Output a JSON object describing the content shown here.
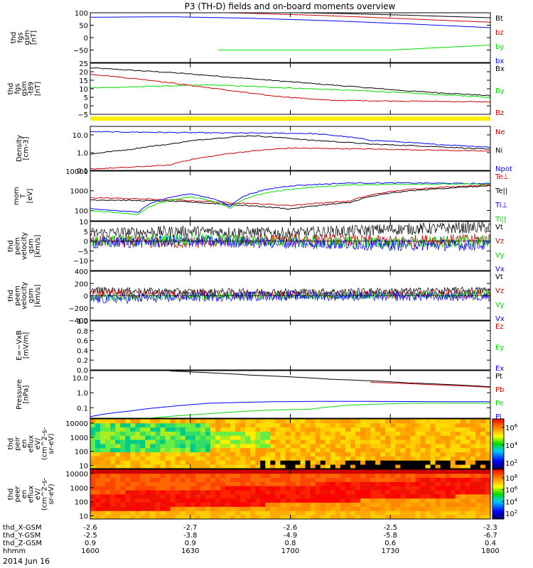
{
  "title": "P3 (TH-D) fields and on-board moments overview",
  "date": "2014 Jun 16",
  "colors": {
    "black": "#000000",
    "red": "#cc0000",
    "green": "#00dd00",
    "blue": "#0000ff",
    "yellow": "#ffee00"
  },
  "chart_data": {
    "type": "line",
    "x_time": {
      "range": [
        "16:00",
        "18:00"
      ],
      "tick_times": [
        "1600",
        "1630",
        "1700",
        "1730",
        "1800"
      ]
    },
    "ephemeris": {
      "rows": [
        {
          "label": "thd_X-GSM",
          "values": [
            "-2.6",
            "-2.7",
            "-2.6",
            "-2.5",
            "-2.3"
          ]
        },
        {
          "label": "thd_Y-GSM",
          "values": [
            "-2.5",
            "-3.8",
            "-4.9",
            "-5.8",
            "-6.7"
          ]
        },
        {
          "label": "thd_Z-GSM",
          "values": [
            "0.9",
            "0.9",
            "0.8",
            "0.6",
            "0.4"
          ]
        },
        {
          "label": "hhmm",
          "values": [
            "1600",
            "1630",
            "1700",
            "1730",
            "1800"
          ]
        }
      ]
    },
    "panels": [
      {
        "id": "fgs_gsm",
        "ylabel_lines": [
          "thd",
          "fgs",
          "gsm",
          "[nT]"
        ],
        "scale": "linear",
        "ylim": [
          -100,
          100
        ],
        "ticks": [
          "100",
          "50",
          "0",
          "−50",
          ""
        ],
        "legend": [
          {
            "label": "Bt",
            "color": "#000000"
          },
          {
            "label": "bz",
            "color": "#cc0000"
          },
          {
            "label": "by",
            "color": "#00dd00"
          },
          {
            "label": "bx",
            "color": "#0000ff"
          }
        ],
        "series": [
          {
            "name": "Bt",
            "color": "#000000",
            "x": [
              0,
              0.2,
              0.4,
              0.6,
              0.8,
              1
            ],
            "y": [
              108,
              106,
              103,
              98,
              90,
              80
            ]
          },
          {
            "name": "bz",
            "color": "#cc0000",
            "x": [
              0,
              0.2,
              0.4,
              0.6,
              0.8,
              1
            ],
            "y": [
              108,
              105,
              98,
              88,
              75,
              62
            ]
          },
          {
            "name": "bx",
            "color": "#0000ff",
            "x": [
              0,
              0.2,
              0.4,
              0.6,
              0.8,
              1
            ],
            "y": [
              82,
              84,
              78,
              68,
              55,
              40
            ]
          },
          {
            "name": "by",
            "color": "#00dd00",
            "x": [
              0.32,
              0.45,
              0.6,
              0.75,
              0.9,
              1
            ],
            "y": [
              -100,
              -85,
              -66,
              -50,
              -38,
              -30
            ]
          }
        ]
      },
      {
        "id": "fgs_gsm_model",
        "ylabel_lines": [
          "thd",
          "fgs",
          "gsm",
          "-t89",
          "[nT]"
        ],
        "scale": "linear",
        "ylim": [
          -8,
          25
        ],
        "ticks": [
          "25",
          "20",
          "15",
          "10",
          "5",
          "0",
          "−5"
        ],
        "legend": [
          {
            "label": "Bx",
            "color": "#000000"
          },
          {
            "label": "By",
            "color": "#00dd00"
          },
          {
            "label": "Bz",
            "color": "#cc0000"
          }
        ],
        "series": [
          {
            "name": "Bx",
            "color": "#000000",
            "x": [
              0,
              0.2,
              0.4,
              0.6,
              0.8,
              1
            ],
            "y": [
              22,
              19,
              15,
              11,
              7,
              4
            ]
          },
          {
            "name": "By",
            "color": "#00dd00",
            "x": [
              0,
              0.15,
              0.3,
              0.5,
              0.7,
              1
            ],
            "y": [
              9,
              10,
              11,
              9,
              7,
              3
            ]
          },
          {
            "name": "Bz",
            "color": "#cc0000",
            "x": [
              0,
              0.15,
              0.3,
              0.45,
              0.6,
              0.8,
              1
            ],
            "y": [
              18,
              14,
              9,
              4,
              1,
              0.5,
              0
            ]
          }
        ],
        "flag_bar": true
      },
      {
        "id": "density",
        "ylabel_lines": [
          "Density",
          "[cm-3]"
        ],
        "scale": "log",
        "ylim": [
          0.1,
          30
        ],
        "ticks": [
          "10.0",
          "1.0",
          "0.1"
        ],
        "tick_values": [
          10,
          1,
          0.1
        ],
        "legend": [
          {
            "label": "Ne",
            "color": "#cc0000"
          },
          {
            "label": "Ni",
            "color": "#000000"
          },
          {
            "label": "Npot",
            "color": "#0000ff"
          }
        ],
        "series": [
          {
            "name": "Npot",
            "color": "#0000ff",
            "x": [
              0,
              0.3,
              0.55,
              0.7,
              0.85,
              1
            ],
            "y": [
              15,
              13,
              12,
              5,
              3,
              2
            ]
          },
          {
            "name": "Ni",
            "color": "#000000",
            "x": [
              0,
              0.1,
              0.2,
              0.3,
              0.4,
              0.55,
              0.7,
              1
            ],
            "y": [
              0.8,
              1.5,
              3,
              6,
              9,
              5,
              3,
              1.5
            ]
          },
          {
            "name": "Ne",
            "color": "#cc0000",
            "x": [
              0,
              0.1,
              0.2,
              0.3,
              0.4,
              0.5,
              0.7,
              1
            ],
            "y": [
              0.12,
              0.15,
              0.2,
              0.6,
              1.2,
              1.8,
              1.6,
              1.2
            ]
          }
        ]
      },
      {
        "id": "temperature",
        "ylabel_lines": [
          "mom",
          "T",
          "[eV]"
        ],
        "scale": "log",
        "ylim": [
          30,
          10000
        ],
        "ticks": [
          "10000",
          "1000",
          "100"
        ],
        "tick_values": [
          10000,
          1000,
          100
        ],
        "legend": [
          {
            "label": "Te⊥",
            "color": "#cc0000"
          },
          {
            "label": "Te||",
            "color": "#000000"
          },
          {
            "label": "Ti⊥",
            "color": "#0000ff"
          },
          {
            "label": "Ti||",
            "color": "#00dd00"
          }
        ],
        "series": [
          {
            "name": "Te⊥",
            "color": "#cc0000",
            "x": [
              0,
              0.2,
              0.35,
              0.5,
              0.65,
              0.8,
              1
            ],
            "y": [
              450,
              350,
              250,
              180,
              300,
              1200,
              2000
            ]
          },
          {
            "name": "Te||",
            "color": "#000000",
            "x": [
              0,
              0.2,
              0.35,
              0.5,
              0.65,
              0.8,
              1
            ],
            "y": [
              350,
              300,
              200,
              120,
              250,
              1000,
              1800
            ]
          },
          {
            "name": "Ti⊥",
            "color": "#0000ff",
            "x": [
              0,
              0.12,
              0.25,
              0.35,
              0.5,
              0.65,
              0.8,
              1
            ],
            "y": [
              120,
              80,
              700,
              150,
              1800,
              2500,
              2500,
              2300
            ]
          },
          {
            "name": "Ti||",
            "color": "#00dd00",
            "x": [
              0,
              0.12,
              0.25,
              0.35,
              0.5,
              0.65,
              0.8,
              1
            ],
            "y": [
              100,
              60,
              500,
              120,
              1200,
              2000,
              2200,
              2200
            ]
          }
        ]
      },
      {
        "id": "peim_velocity",
        "ylabel_lines": [
          "thd",
          "peim",
          "velocity",
          "gsm",
          "[km/s]"
        ],
        "scale": "linear",
        "ylim": [
          -15,
          10
        ],
        "ticks": [
          "10",
          "5",
          "0",
          "−5",
          "−10",
          ""
        ],
        "legend": [
          {
            "label": "Vt",
            "color": "#000000"
          },
          {
            "label": "Vz",
            "color": "#cc0000"
          },
          {
            "label": "Vy",
            "color": "#00dd00"
          },
          {
            "label": "Vx",
            "color": "#0000ff"
          }
        ],
        "noisy": [
          {
            "name": "Vt",
            "color": "#000000",
            "base": [
              4,
              5,
              4,
              6,
              7
            ],
            "amp": 3
          },
          {
            "name": "Vz",
            "color": "#cc0000",
            "base": [
              0,
              -1,
              1,
              0,
              1
            ],
            "amp": 3
          },
          {
            "name": "Vy",
            "color": "#00dd00",
            "base": [
              0,
              1,
              0,
              -1,
              0
            ],
            "amp": 3
          },
          {
            "name": "Vx",
            "color": "#0000ff",
            "base": [
              -1,
              0,
              -1,
              -2,
              -2
            ],
            "amp": 3
          }
        ]
      },
      {
        "id": "peem_velocity",
        "ylabel_lines": [
          "thd",
          "peem",
          "velocity",
          "gsm",
          "[km/s]"
        ],
        "scale": "linear",
        "ylim": [
          -400,
          400
        ],
        "ticks": [
          "400",
          "200",
          "0",
          "−200",
          "−400"
        ],
        "legend": [
          {
            "label": "Vt",
            "color": "#000000"
          },
          {
            "label": "Vz",
            "color": "#cc0000"
          },
          {
            "label": "Vy",
            "color": "#00dd00"
          },
          {
            "label": "Vx",
            "color": "#0000ff"
          }
        ],
        "noisy": [
          {
            "name": "Vt",
            "color": "#000000",
            "base": [
              90,
              60,
              60,
              70,
              90
            ],
            "amp": 60
          },
          {
            "name": "Vz",
            "color": "#cc0000",
            "base": [
              40,
              20,
              10,
              20,
              30
            ],
            "amp": 70
          },
          {
            "name": "Vy",
            "color": "#00dd00",
            "base": [
              -30,
              -10,
              0,
              10,
              20
            ],
            "amp": 60
          },
          {
            "name": "Vx",
            "color": "#0000ff",
            "base": [
              -60,
              -20,
              0,
              -10,
              -10
            ],
            "amp": 80
          }
        ]
      },
      {
        "id": "efield",
        "ylabel_lines": [
          "E=−VxB",
          "[mV/m]"
        ],
        "scale": "linear",
        "ylim": [
          0,
          1
        ],
        "ticks": [
          "1.0",
          "0.8",
          "0.6",
          "0.4",
          "0.2",
          "0.0"
        ],
        "legend": [
          {
            "label": "Ez",
            "color": "#cc0000"
          },
          {
            "label": "Ey",
            "color": "#00dd00"
          },
          {
            "label": "Ex",
            "color": "#0000ff"
          }
        ],
        "series": []
      },
      {
        "id": "pressure",
        "ylabel_lines": [
          "Pressure",
          "[nPa]"
        ],
        "scale": "log",
        "ylim": [
          0.02,
          30
        ],
        "ticks": [
          "10.0",
          "1.0",
          "0.1"
        ],
        "tick_values": [
          10,
          1,
          0.1
        ],
        "legend": [
          {
            "label": "Pt",
            "color": "#000000"
          },
          {
            "label": "Pb",
            "color": "#cc0000"
          },
          {
            "label": "Pe",
            "color": "#00dd00"
          },
          {
            "label": "Pi",
            "color": "#0000ff"
          }
        ],
        "series": [
          {
            "name": "Pt",
            "color": "#000000",
            "x": [
              0.2,
              0.4,
              0.6,
              0.8,
              1
            ],
            "y": [
              28,
              15,
              8,
              4.5,
              2.5
            ]
          },
          {
            "name": "Pb",
            "color": "#cc0000",
            "x": [
              0.7,
              0.85,
              1
            ],
            "y": [
              5,
              3.5,
              2.3
            ]
          },
          {
            "name": "Pi",
            "color": "#0000ff",
            "x": [
              0,
              0.1,
              0.2,
              0.3,
              0.45,
              0.6,
              0.8,
              1
            ],
            "y": [
              0.025,
              0.06,
              0.12,
              0.2,
              0.25,
              0.27,
              0.26,
              0.25
            ]
          },
          {
            "name": "Pe",
            "color": "#00dd00",
            "x": [
              0,
              0.15,
              0.3,
              0.45,
              0.55,
              0.65,
              0.8,
              1
            ],
            "y": [
              0.015,
              0.02,
              0.04,
              0.07,
              0.08,
              0.15,
              0.2,
              0.2
            ]
          }
        ]
      },
      {
        "id": "peir_eflux",
        "ylabel_lines": [
          "thd",
          "peir",
          "en",
          "eflux",
          "eV/",
          "(cm^2-s-",
          "sr-eV)"
        ],
        "scale": "spectrogram",
        "ticks": [
          "10000",
          "1000",
          "100",
          "10"
        ],
        "colorbar": {
          "ticks": [
            "10^6",
            "10^4",
            "10^2"
          ]
        }
      },
      {
        "id": "peer_eflux",
        "ylabel_lines": [
          "thd",
          "peer",
          "en",
          "eflux",
          "eV/",
          "(cm^2-s-",
          "sr-eV)"
        ],
        "scale": "spectrogram",
        "ticks": [
          "10000",
          "1000",
          "100",
          "10"
        ],
        "colorbar": {
          "ticks": [
            "10^8",
            "10^6",
            "10^4",
            "10^2"
          ]
        }
      }
    ]
  }
}
